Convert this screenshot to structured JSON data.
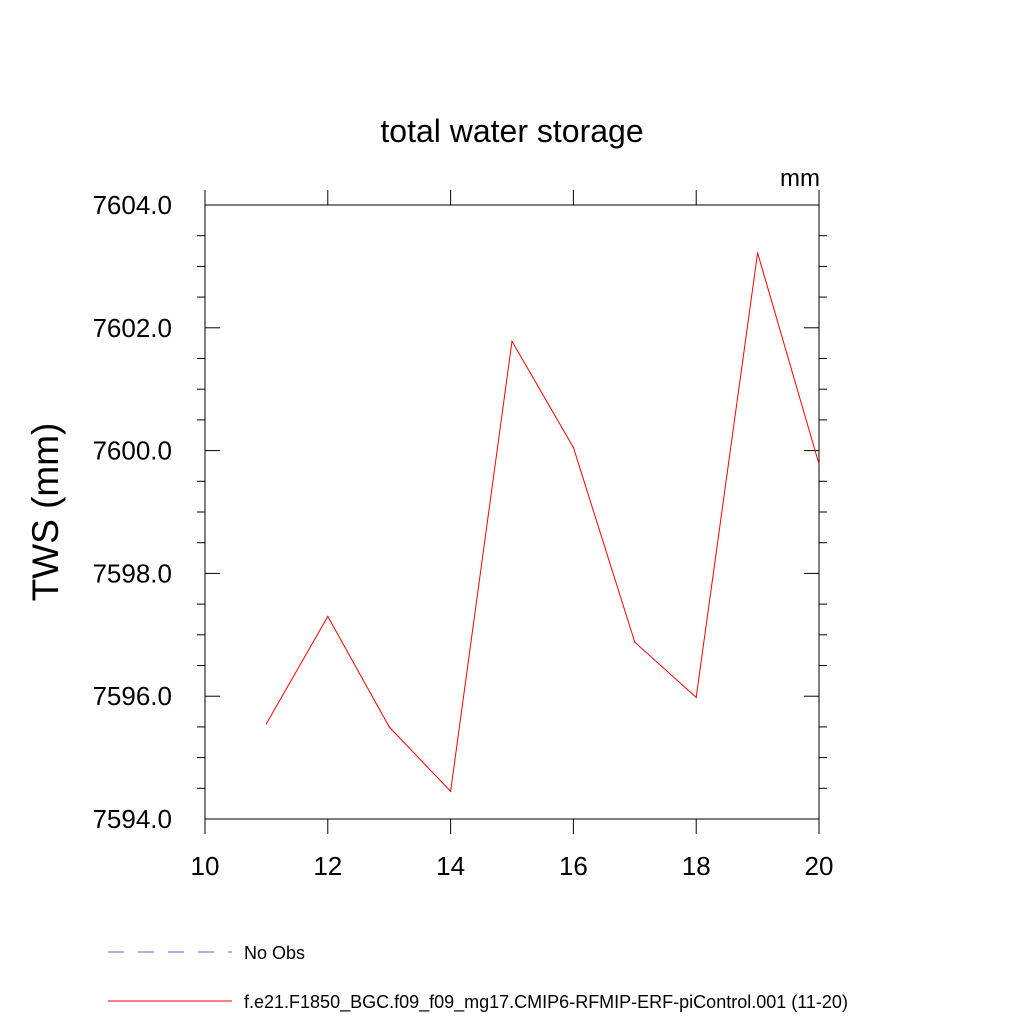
{
  "chart_data": {
    "type": "line",
    "title": "total water storage",
    "units": "mm",
    "xlabel": "",
    "ylabel": "TWS  (mm)",
    "xlim": [
      10,
      20
    ],
    "ylim": [
      7594.0,
      7604.0
    ],
    "x_ticks": [
      10,
      12,
      14,
      16,
      18,
      20
    ],
    "x_tick_labels": [
      "10",
      "12",
      "14",
      "16",
      "18",
      "20"
    ],
    "y_ticks": [
      7594.0,
      7596.0,
      7598.0,
      7600.0,
      7602.0,
      7604.0
    ],
    "y_tick_labels": [
      "7594.0",
      "7596.0",
      "7598.0",
      "7600.0",
      "7602.0",
      "7604.0"
    ],
    "series": [
      {
        "name": "f.e21.F1850_BGC.f09_f09_mg17.CMIP6-RFMIP-ERF-piControl.001 (11-20)",
        "color": "#ff0000",
        "style": "solid",
        "x": [
          11,
          12,
          13,
          14,
          15,
          16,
          17,
          18,
          19,
          20
        ],
        "values": [
          7595.55,
          7597.3,
          7595.5,
          7594.45,
          7601.78,
          7600.05,
          7596.88,
          7595.98,
          7603.22,
          7599.78
        ]
      }
    ],
    "legend": [
      {
        "label": "No Obs",
        "color": "#6a5acd",
        "style": "dashed"
      },
      {
        "label": "f.e21.F1850_BGC.f09_f09_mg17.CMIP6-RFMIP-ERF-piControl.001 (11-20)",
        "color": "#ff0000",
        "style": "solid"
      }
    ]
  }
}
